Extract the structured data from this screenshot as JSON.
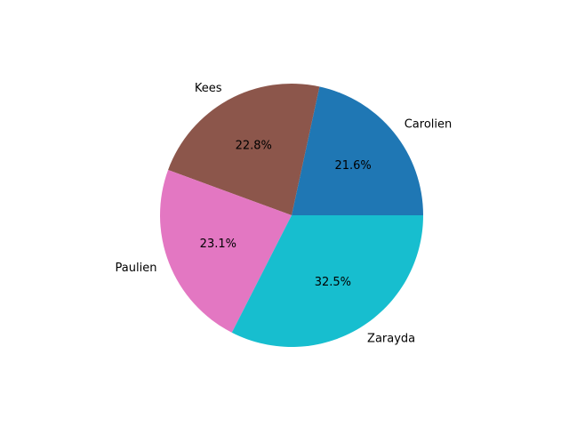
{
  "chart_data": {
    "type": "pie",
    "title": "",
    "categories": [
      "Carolien",
      "Kees",
      "Paulien",
      "Zarayda"
    ],
    "values": [
      21.6,
      22.8,
      23.1,
      32.5
    ],
    "percent_labels": [
      "21.6%",
      "22.8%",
      "23.1%",
      "32.5%"
    ],
    "colors": [
      "#1f77b4",
      "#8c564b",
      "#e377c2",
      "#17becf"
    ],
    "start_angle_deg": 0,
    "direction": "counterclockwise",
    "legend": "none"
  }
}
